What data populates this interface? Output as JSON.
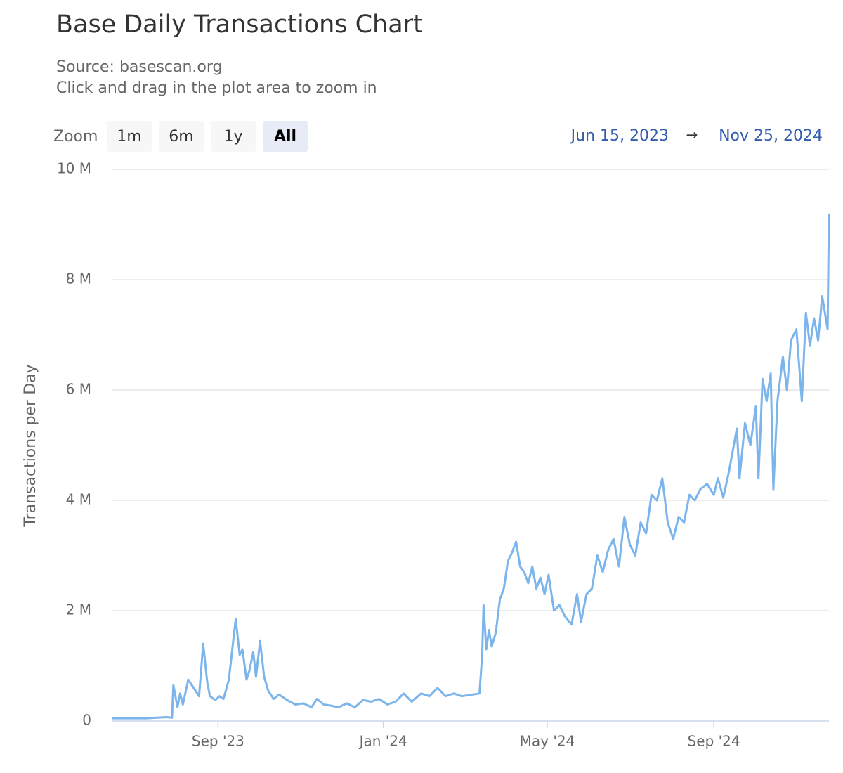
{
  "chart_data": {
    "type": "line",
    "title": "Base Daily Transactions Chart",
    "subtitle": "Source: basescan.org",
    "caption": "Click and drag in the plot area to zoom in",
    "y_label": "Transactions per Day",
    "color": "#7cb5ec",
    "grid": true,
    "x": [
      "2023-06-15",
      "2023-07-10",
      "2023-07-25",
      "2023-07-29",
      "2023-07-30",
      "2023-08-02",
      "2023-08-04",
      "2023-08-06",
      "2023-08-10",
      "2023-08-14",
      "2023-08-18",
      "2023-08-21",
      "2023-08-24",
      "2023-08-26",
      "2023-08-30",
      "2023-09-02",
      "2023-09-05",
      "2023-09-09",
      "2023-09-14",
      "2023-09-17",
      "2023-09-19",
      "2023-09-22",
      "2023-09-24",
      "2023-09-27",
      "2023-09-29",
      "2023-10-02",
      "2023-10-05",
      "2023-10-08",
      "2023-10-12",
      "2023-10-16",
      "2023-10-22",
      "2023-10-28",
      "2023-11-03",
      "2023-11-09",
      "2023-11-13",
      "2023-11-18",
      "2023-11-23",
      "2023-11-29",
      "2023-12-05",
      "2023-12-11",
      "2023-12-17",
      "2023-12-23",
      "2023-12-29",
      "2024-01-04",
      "2024-01-10",
      "2024-01-16",
      "2024-01-22",
      "2024-01-29",
      "2024-02-04",
      "2024-02-10",
      "2024-02-16",
      "2024-02-22",
      "2024-02-28",
      "2024-03-12",
      "2024-03-14",
      "2024-03-15",
      "2024-03-17",
      "2024-03-19",
      "2024-03-21",
      "2024-03-24",
      "2024-03-27",
      "2024-03-30",
      "2024-04-02",
      "2024-04-05",
      "2024-04-08",
      "2024-04-11",
      "2024-04-14",
      "2024-04-17",
      "2024-04-20",
      "2024-04-23",
      "2024-04-26",
      "2024-04-29",
      "2024-05-02",
      "2024-05-06",
      "2024-05-10",
      "2024-05-14",
      "2024-05-19",
      "2024-05-23",
      "2024-05-26",
      "2024-05-30",
      "2024-06-03",
      "2024-06-07",
      "2024-06-11",
      "2024-06-15",
      "2024-06-19",
      "2024-06-23",
      "2024-06-27",
      "2024-07-01",
      "2024-07-05",
      "2024-07-09",
      "2024-07-13",
      "2024-07-17",
      "2024-07-21",
      "2024-07-25",
      "2024-07-29",
      "2024-08-02",
      "2024-08-06",
      "2024-08-10",
      "2024-08-14",
      "2024-08-18",
      "2024-08-22",
      "2024-08-27",
      "2024-09-01",
      "2024-09-04",
      "2024-09-08",
      "2024-09-12",
      "2024-09-15",
      "2024-09-18",
      "2024-09-20",
      "2024-09-24",
      "2024-09-28",
      "2024-10-02",
      "2024-10-04",
      "2024-10-07",
      "2024-10-10",
      "2024-10-13",
      "2024-10-15",
      "2024-10-18",
      "2024-10-22",
      "2024-10-25",
      "2024-10-28",
      "2024-11-01",
      "2024-11-05",
      "2024-11-08",
      "2024-11-11",
      "2024-11-14",
      "2024-11-17",
      "2024-11-20",
      "2024-11-24",
      "2024-11-25"
    ],
    "values": [
      50000,
      50000,
      70000,
      60000,
      650000,
      250000,
      500000,
      300000,
      750000,
      600000,
      450000,
      1400000,
      700000,
      450000,
      380000,
      450000,
      400000,
      750000,
      1850000,
      1200000,
      1300000,
      750000,
      900000,
      1250000,
      800000,
      1450000,
      800000,
      550000,
      400000,
      480000,
      380000,
      300000,
      320000,
      250000,
      400000,
      300000,
      280000,
      250000,
      320000,
      250000,
      380000,
      350000,
      400000,
      300000,
      350000,
      500000,
      350000,
      500000,
      450000,
      600000,
      450000,
      500000,
      450000,
      500000,
      1200000,
      2100000,
      1300000,
      1650000,
      1350000,
      1600000,
      2200000,
      2400000,
      2900000,
      3050000,
      3250000,
      2800000,
      2700000,
      2500000,
      2800000,
      2400000,
      2600000,
      2300000,
      2650000,
      2000000,
      2100000,
      1900000,
      1750000,
      2300000,
      1800000,
      2300000,
      2400000,
      3000000,
      2700000,
      3100000,
      3300000,
      2800000,
      3700000,
      3200000,
      3000000,
      3600000,
      3400000,
      4100000,
      4000000,
      4400000,
      3600000,
      3300000,
      3700000,
      3600000,
      4100000,
      4000000,
      4200000,
      4300000,
      4100000,
      4400000,
      4050000,
      4500000,
      4900000,
      5300000,
      4400000,
      5400000,
      5000000,
      5700000,
      4400000,
      6200000,
      5800000,
      6300000,
      4200000,
      5800000,
      6600000,
      6000000,
      6900000,
      7100000,
      5800000,
      7400000,
      6800000,
      7300000,
      6900000,
      7700000,
      7100000,
      9200000
    ],
    "xlim": [
      "2023-06-15",
      "2024-11-25"
    ],
    "xticks": [
      {
        "value": "2023-09-01",
        "label": "Sep '23"
      },
      {
        "value": "2024-01-01",
        "label": "Jan '24"
      },
      {
        "value": "2024-05-01",
        "label": "May '24"
      },
      {
        "value": "2024-09-01",
        "label": "Sep '24"
      }
    ],
    "ylim": [
      0,
      10000000
    ],
    "yticks": [
      0,
      {
        "value": 2000000,
        "label": "2 M"
      },
      {
        "value": 4000000,
        "label": "4 M"
      },
      {
        "value": 6000000,
        "label": "6 M"
      },
      {
        "value": 8000000,
        "label": "8 M"
      },
      {
        "value": 10000000,
        "label": "10 M"
      }
    ]
  },
  "range_selector": {
    "label": "Zoom",
    "buttons": [
      "1m",
      "6m",
      "1y",
      "All"
    ],
    "selected": 3,
    "from": "Jun 15, 2023",
    "arrow": "→",
    "to": "Nov 25, 2024"
  }
}
